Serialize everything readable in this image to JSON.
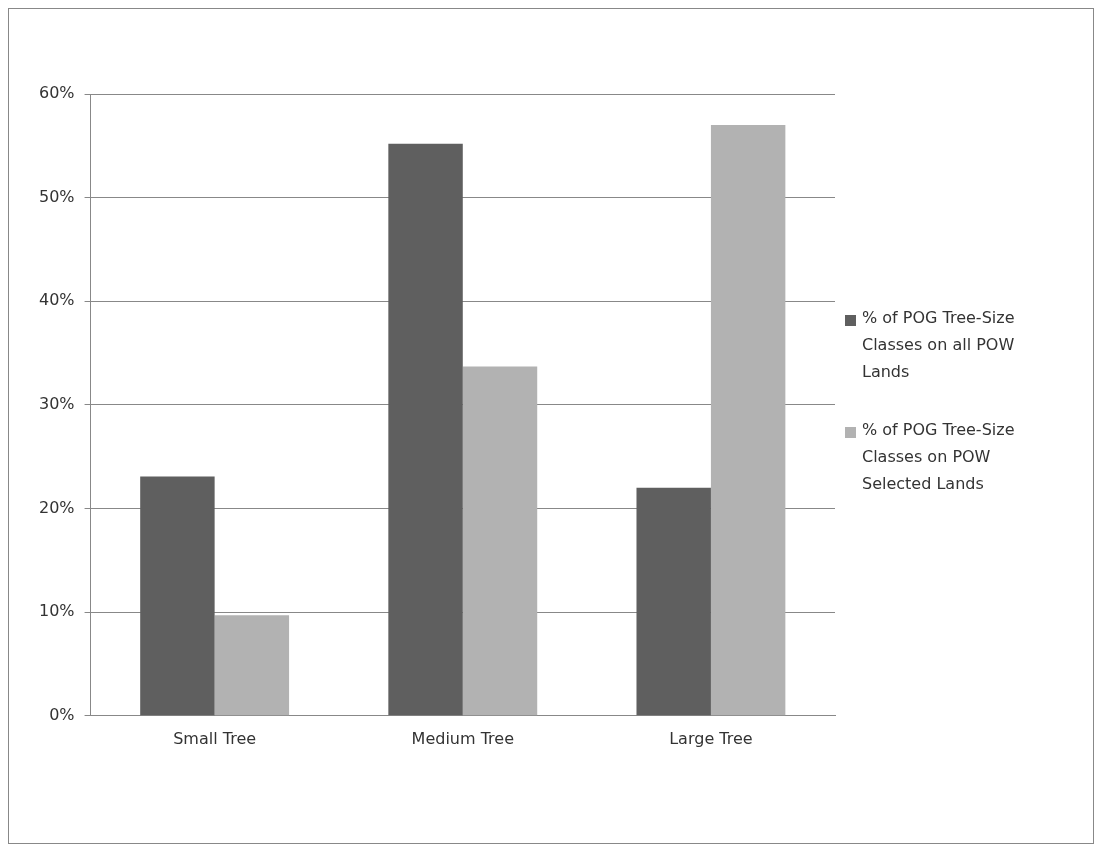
{
  "chart_data": {
    "type": "bar",
    "categories": [
      "Small Tree",
      "Medium Tree",
      "Large Tree"
    ],
    "series": [
      {
        "name": "% of POG Tree-Size Classes on all POW Lands",
        "color": "#5f5f5f",
        "values": [
          23.1,
          55.2,
          22.0
        ]
      },
      {
        "name": "% of POG Tree-Size Classes on POW Selected Lands",
        "color": "#b2b2b2",
        "values": [
          9.7,
          33.7,
          57.0
        ]
      }
    ],
    "ylim": [
      0,
      60
    ],
    "yticks": [
      {
        "value": 0,
        "label": "0%"
      },
      {
        "value": 10,
        "label": "10%"
      },
      {
        "value": 20,
        "label": "20%"
      },
      {
        "value": 30,
        "label": "30%"
      },
      {
        "value": 40,
        "label": "40%"
      },
      {
        "value": 50,
        "label": "50%"
      },
      {
        "value": 60,
        "label": "60%"
      }
    ],
    "grid": "y",
    "legend": "right"
  }
}
